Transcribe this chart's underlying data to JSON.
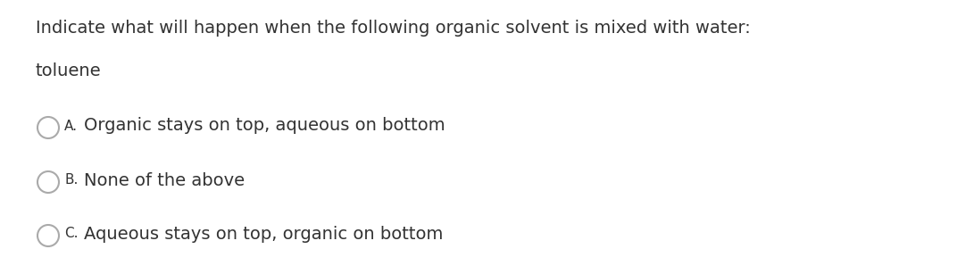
{
  "background_color": "#ffffff",
  "text_color": "#333333",
  "question": "Indicate what will happen when the following organic solvent is mixed with water:",
  "solvent": "toluene",
  "options": [
    {
      "label": "A.",
      "text": "Organic stays on top, aqueous on bottom"
    },
    {
      "label": "B.",
      "text": "None of the above"
    },
    {
      "label": "C.",
      "text": "Aqueous stays on top, organic on bottom"
    }
  ],
  "question_fontsize": 14,
  "solvent_fontsize": 14,
  "option_label_fontsize": 11,
  "option_text_fontsize": 14,
  "circle_color": "#aaaaaa",
  "circle_linewidth": 1.5,
  "fig_width": 10.72,
  "fig_height": 3.07,
  "dpi": 100
}
